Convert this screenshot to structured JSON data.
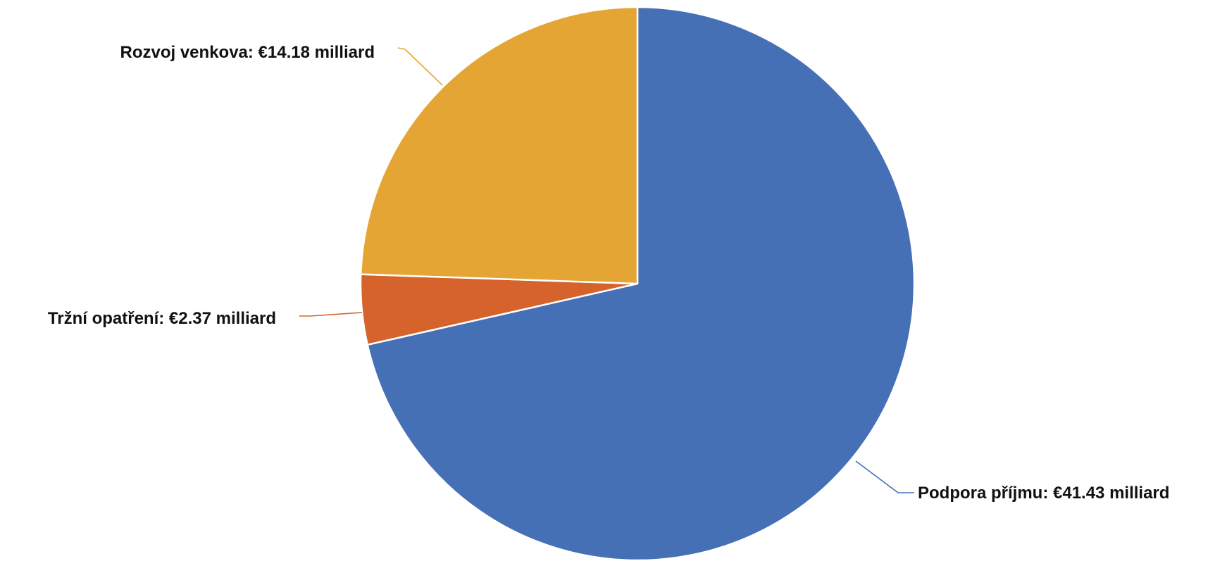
{
  "chart_data": {
    "type": "pie",
    "title": "",
    "unit": "milliard",
    "currency": "€",
    "slices": [
      {
        "label": "Podpora příjmu",
        "value": 41.43,
        "color": "#4670B5",
        "text": "Podpora příjmu: €41.43 milliard"
      },
      {
        "label": "Tržní opatření",
        "value": 2.37,
        "color": "#D6632B",
        "text": "Tržní opatření: €2.37 milliard"
      },
      {
        "label": "Rozvoj venkova",
        "value": 14.18,
        "color": "#E5A534",
        "text": "Rozvoj venkova: €14.18 milliard"
      }
    ],
    "start_angle_deg": 0,
    "direction": "clockwise",
    "legend": "none"
  }
}
